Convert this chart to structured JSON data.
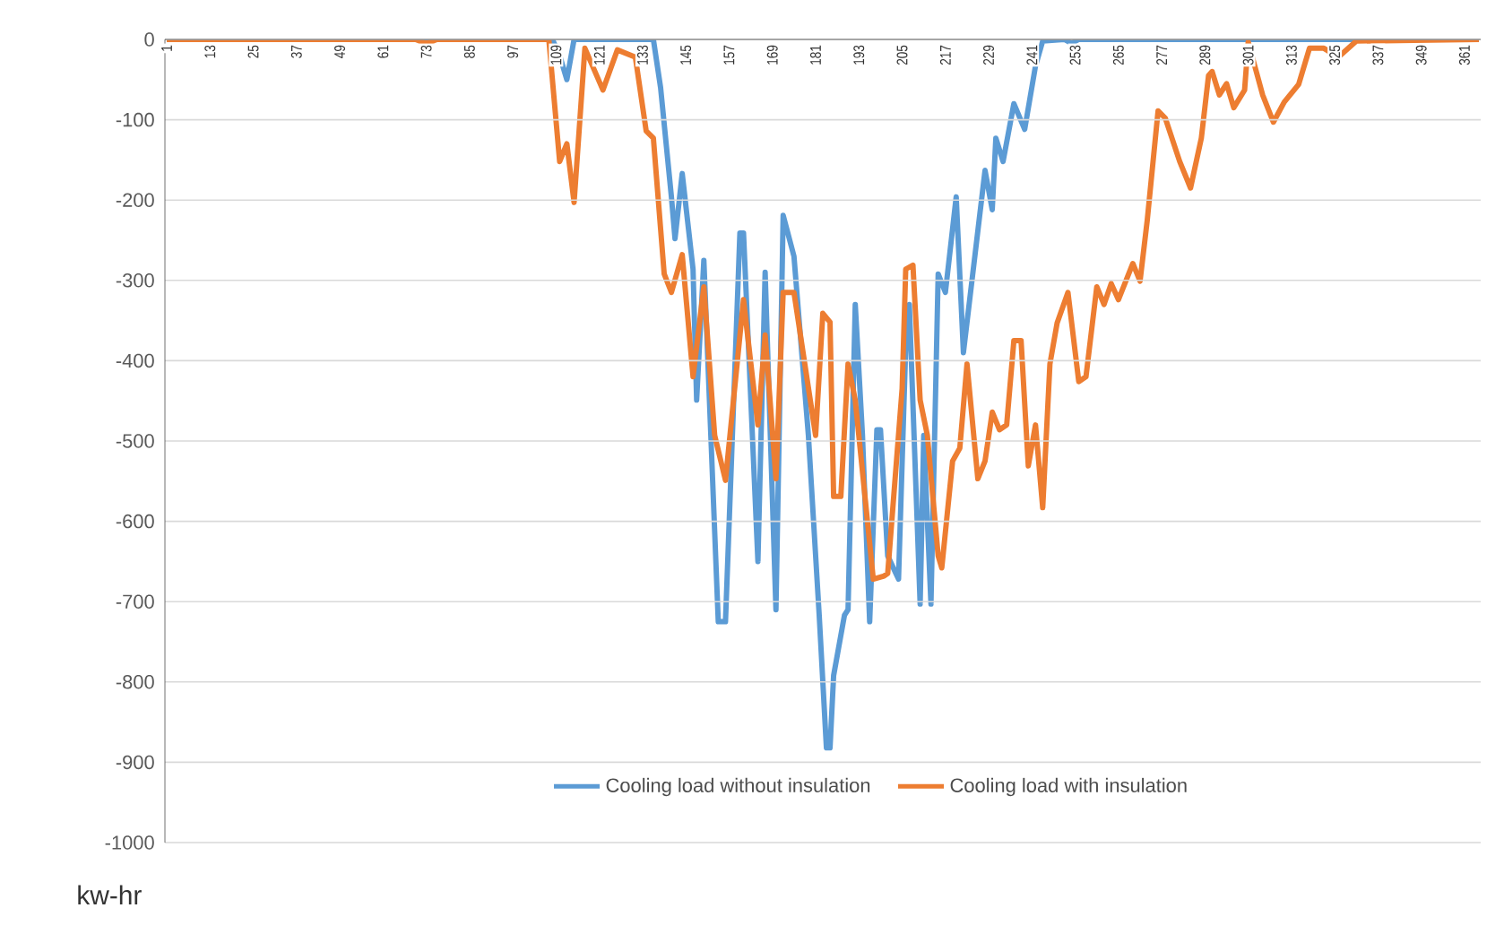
{
  "chart_data": {
    "type": "line",
    "ylabel": "kw-hr",
    "xlim": [
      0.5,
      365.5
    ],
    "xticks": [
      1,
      13,
      25,
      37,
      49,
      61,
      73,
      85,
      97,
      109,
      121,
      133,
      145,
      157,
      169,
      181,
      193,
      205,
      217,
      229,
      241,
      253,
      265,
      277,
      289,
      301,
      313,
      325,
      337,
      349,
      361
    ],
    "ylim": [
      -1000,
      0
    ],
    "yticks": [
      0,
      -100,
      -200,
      -300,
      -400,
      -500,
      -600,
      -700,
      -800,
      -900,
      -1000
    ],
    "grid": "y",
    "legend": "bottom",
    "series": [
      {
        "name": "Cooling load  without insulation",
        "color": "#5b9bd5",
        "x": [
          1,
          60,
          108,
          110,
          112,
          114,
          120,
          136,
          138,
          141,
          142,
          144,
          147,
          148,
          150,
          154,
          156,
          160,
          161,
          165,
          167,
          170,
          172,
          175,
          179,
          182,
          184,
          185,
          186,
          189,
          190,
          192,
          194,
          196,
          198,
          199,
          201,
          204,
          206,
          207,
          210,
          211,
          213,
          215,
          217,
          220,
          222,
          228,
          230,
          231,
          233,
          236,
          239,
          242,
          244,
          250,
          252,
          254,
          300,
          365
        ],
        "values": [
          0,
          0,
          0,
          -20,
          -50,
          0,
          0,
          0,
          -60,
          -196,
          -248,
          -167,
          -286,
          -449,
          -275,
          -725,
          -725,
          -241,
          -241,
          -650,
          -290,
          -710,
          -219,
          -270,
          -493,
          -717,
          -882,
          -882,
          -792,
          -717,
          -710,
          -330,
          -493,
          -725,
          -486,
          -486,
          -643,
          -672,
          -382,
          -330,
          -703,
          -493,
          -703,
          -292,
          -315,
          -196,
          -390,
          -163,
          -212,
          -123,
          -152,
          -80,
          -112,
          -33,
          -2,
          0,
          -5,
          0,
          0,
          0
        ]
      },
      {
        "name": "Cooling load  with insulation",
        "color": "#ed7d31",
        "x": [
          1,
          70,
          73,
          76,
          100,
          107,
          110,
          112,
          114,
          117,
          122,
          126,
          131,
          134,
          136,
          139,
          141,
          144,
          147,
          150,
          153,
          156,
          161,
          165,
          167,
          170,
          172,
          175,
          181,
          183,
          185,
          186,
          188,
          190,
          192,
          197,
          200,
          201,
          205,
          206,
          208,
          210,
          212,
          215,
          216,
          219,
          221,
          223,
          226,
          228,
          230,
          232,
          234,
          236,
          238,
          240,
          242,
          244,
          246,
          248,
          251,
          254,
          256,
          259,
          261,
          263,
          265,
          269,
          271,
          273,
          276,
          278,
          282,
          285,
          288,
          290,
          291,
          293,
          295,
          297,
          300,
          301,
          305,
          308,
          311,
          315,
          318,
          322,
          326,
          331,
          365
        ],
        "values": [
          0,
          0,
          -5,
          0,
          0,
          0,
          -152,
          -130,
          -203,
          -11,
          -63,
          -13,
          -22,
          -114,
          -123,
          -292,
          -315,
          -268,
          -420,
          -308,
          -493,
          -549,
          -324,
          -480,
          -368,
          -547,
          -315,
          -315,
          -493,
          -341,
          -352,
          -569,
          -569,
          -404,
          -449,
          -672,
          -668,
          -665,
          -435,
          -286,
          -281,
          -449,
          -493,
          -643,
          -658,
          -525,
          -509,
          -404,
          -547,
          -525,
          -464,
          -486,
          -480,
          -375,
          -375,
          -531,
          -480,
          -583,
          -404,
          -353,
          -315,
          -426,
          -420,
          -308,
          -330,
          -304,
          -324,
          -279,
          -301,
          -225,
          -89,
          -98,
          -152,
          -185,
          -123,
          -45,
          -40,
          -69,
          -55,
          -85,
          -63,
          -3,
          -69,
          -103,
          -78,
          -56,
          -11,
          -11,
          -22,
          -2,
          0
        ]
      }
    ]
  }
}
